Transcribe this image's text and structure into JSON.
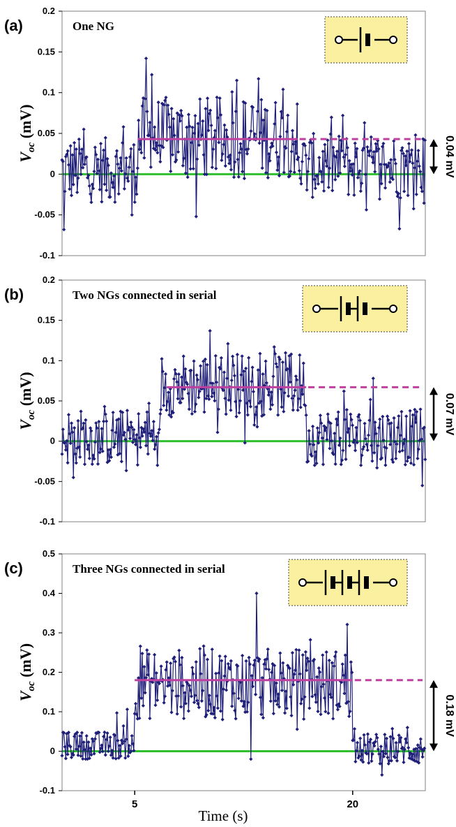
{
  "figure": {
    "xlabel": "Time (s)",
    "colors": {
      "data": "#1f1f7a",
      "baseline": "#2fbf2f",
      "level": "#c040a0",
      "box": "#fbf0a0",
      "box_border": "#666666"
    }
  },
  "chart_data": [
    {
      "type": "line",
      "panel": "(a)",
      "title": "One NG",
      "ylabel": "V",
      "ylabel_sub": "oc",
      "ylabel_unit": "(mV)",
      "ylim": [
        -0.1,
        0.2
      ],
      "yticks": [
        -0.1,
        -0.05,
        0,
        0.05,
        0.1,
        0.15,
        0.2
      ],
      "ytick_labels": [
        "-0.1",
        "-0.05",
        "0",
        "0.05",
        "0.1",
        "0.15",
        "0.2"
      ],
      "xlim": [
        0,
        25
      ],
      "xticks": [],
      "xtick_labels": [],
      "baseline": 0,
      "level": {
        "value": 0.043,
        "start": 5.2,
        "solid_end": 16.2
      },
      "annotation": "0.04 mV",
      "cells": 1,
      "segments": [
        {
          "x_start": 0,
          "x_end": 5.2,
          "mean": 0.005,
          "amp": 0.04,
          "spikes": [
            [
              0.1,
              -0.068
            ],
            [
              1.5,
              0.055
            ],
            [
              4.2,
              0.058
            ],
            [
              4.8,
              -0.05
            ]
          ]
        },
        {
          "x_start": 5.2,
          "x_end": 16.2,
          "mean": 0.045,
          "amp": 0.05,
          "spikes": [
            [
              5.8,
              0.142
            ],
            [
              6.2,
              0.122
            ],
            [
              9.2,
              -0.052
            ],
            [
              12.0,
              0.115
            ],
            [
              13.5,
              0.117
            ],
            [
              15.2,
              0.104
            ]
          ]
        },
        {
          "x_start": 16.2,
          "x_end": 25,
          "mean": 0.01,
          "amp": 0.04,
          "spikes": [
            [
              19.3,
              0.072
            ],
            [
              20.8,
              0.063
            ],
            [
              23.2,
              -0.067
            ],
            [
              24.3,
              0.048
            ]
          ]
        }
      ]
    },
    {
      "type": "line",
      "panel": "(b)",
      "title": "Two NGs connected in serial",
      "ylabel": "V",
      "ylabel_sub": "oc",
      "ylabel_unit": "(mV)",
      "ylim": [
        -0.1,
        0.2
      ],
      "yticks": [
        -0.1,
        -0.05,
        0,
        0.05,
        0.1,
        0.15,
        0.2
      ],
      "ytick_labels": [
        "-0.1",
        "-0.05",
        "0",
        "0.05",
        "0.1",
        "0.15",
        "0.2"
      ],
      "xlim": [
        0,
        25
      ],
      "xticks": [],
      "xtick_labels": [],
      "baseline": 0,
      "level": {
        "value": 0.067,
        "start": 7.2,
        "solid_end": 16.8
      },
      "annotation": "0.07 mV",
      "cells": 2,
      "segments": [
        {
          "x_start": 0,
          "x_end": 6.8,
          "mean": 0.005,
          "amp": 0.035,
          "spikes": [
            [
              0.8,
              -0.045
            ],
            [
              2.9,
              0.043
            ],
            [
              6.0,
              0.047
            ]
          ]
        },
        {
          "x_start": 6.8,
          "x_end": 16.8,
          "mean": 0.07,
          "amp": 0.04,
          "spikes": [
            [
              10.2,
              0.137
            ],
            [
              11.4,
              0.121
            ],
            [
              12.6,
              -0.002
            ],
            [
              15.8,
              0.108
            ]
          ]
        },
        {
          "x_start": 16.8,
          "x_end": 25,
          "mean": 0.005,
          "amp": 0.035,
          "spikes": [
            [
              19.4,
              0.062
            ],
            [
              21.4,
              0.078
            ],
            [
              21.7,
              -0.033
            ],
            [
              24.8,
              -0.055
            ]
          ]
        }
      ]
    },
    {
      "type": "line",
      "panel": "(c)",
      "title": "Three NGs connected in serial",
      "ylabel": "V",
      "ylabel_sub": "oc",
      "ylabel_unit": "(mV)",
      "ylim": [
        -0.1,
        0.5
      ],
      "yticks": [
        -0.1,
        0,
        0.1,
        0.2,
        0.3,
        0.4,
        0.5
      ],
      "ytick_labels": [
        "-0.1",
        "0",
        "0.1",
        "0.2",
        "0.3",
        "0.4",
        "0.5"
      ],
      "xlim": [
        0,
        25
      ],
      "xticks": [
        5,
        20
      ],
      "xtick_labels": [
        "5",
        "20"
      ],
      "baseline": 0,
      "level": {
        "value": 0.18,
        "start": 5.0,
        "solid_end": 20.0
      },
      "annotation": "0.18 mV",
      "cells": 3,
      "segments": [
        {
          "x_start": 0,
          "x_end": 5.0,
          "mean": 0.015,
          "amp": 0.035,
          "spikes": [
            [
              3.8,
              0.097
            ],
            [
              4.5,
              0.106
            ]
          ]
        },
        {
          "x_start": 5.0,
          "x_end": 20.0,
          "mean": 0.17,
          "amp": 0.09,
          "spikes": [
            [
              5.4,
              0.266
            ],
            [
              13.0,
              -0.02
            ],
            [
              13.4,
              0.4
            ],
            [
              19.6,
              0.321
            ]
          ]
        },
        {
          "x_start": 20.0,
          "x_end": 25,
          "mean": 0.005,
          "amp": 0.04,
          "spikes": [
            [
              22.0,
              -0.06
            ],
            [
              23.8,
              0.06
            ]
          ]
        }
      ]
    }
  ]
}
